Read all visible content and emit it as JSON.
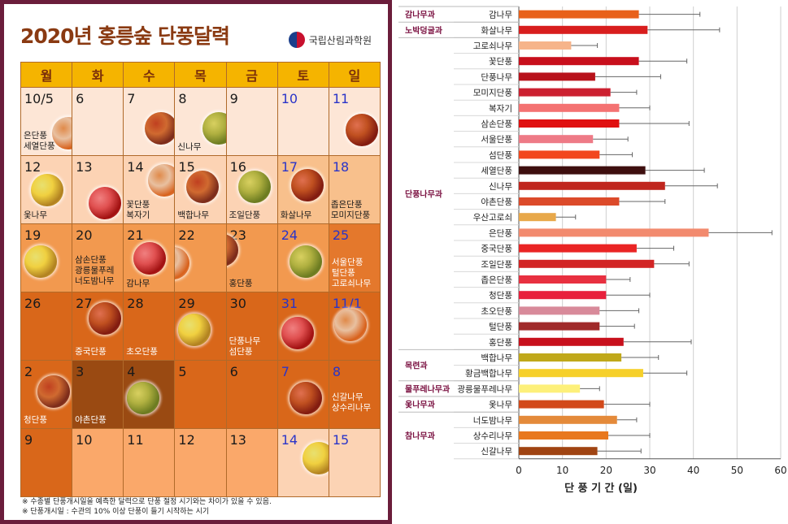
{
  "calendar": {
    "title": "2020년 홍릉숲 단풍달력",
    "brand": "국립산림과학원",
    "weekdays": [
      "월",
      "화",
      "수",
      "목",
      "금",
      "토",
      "일"
    ],
    "weeks": [
      [
        {
          "day": "10/5",
          "labels": [
            "은단풍",
            "세열단풍"
          ]
        },
        {
          "day": "6",
          "labels": []
        },
        {
          "day": "7",
          "labels": []
        },
        {
          "day": "8",
          "labels": [
            "신나무"
          ]
        },
        {
          "day": "9",
          "labels": []
        },
        {
          "day": "10",
          "labels": []
        },
        {
          "day": "11",
          "labels": []
        }
      ],
      [
        {
          "day": "12",
          "labels": [
            "옻나무"
          ]
        },
        {
          "day": "13",
          "labels": []
        },
        {
          "day": "14",
          "labels": [
            "꽃단풍",
            "복자기"
          ]
        },
        {
          "day": "15",
          "labels": [
            "백합나무"
          ]
        },
        {
          "day": "16",
          "labels": [
            "조일단풍"
          ]
        },
        {
          "day": "17",
          "labels": [
            "화살나무"
          ]
        },
        {
          "day": "18",
          "labels": [
            "좁은단풍",
            "모미지단풍"
          ]
        }
      ],
      [
        {
          "day": "19",
          "labels": []
        },
        {
          "day": "20",
          "labels": [
            "삼손단풍",
            "광릉물푸레",
            "너도밤나무"
          ]
        },
        {
          "day": "21",
          "labels": [
            "감나무"
          ]
        },
        {
          "day": "22",
          "labels": []
        },
        {
          "day": "23",
          "labels": [
            "홍단풍"
          ]
        },
        {
          "day": "24",
          "labels": []
        },
        {
          "day": "25",
          "labels": [
            "서울단풍",
            "털단풍",
            "고로쇠나무"
          ]
        }
      ],
      [
        {
          "day": "26",
          "labels": []
        },
        {
          "day": "27",
          "labels": [
            "중국단풍"
          ]
        },
        {
          "day": "28",
          "labels": [
            "초오단풍"
          ]
        },
        {
          "day": "29",
          "labels": []
        },
        {
          "day": "30",
          "labels": [
            "단풍나무",
            "섬단풍"
          ]
        },
        {
          "day": "31",
          "labels": []
        },
        {
          "day": "11/1",
          "labels": []
        }
      ],
      [
        {
          "day": "2",
          "labels": [
            "청단풍"
          ]
        },
        {
          "day": "3",
          "labels": [
            "야촌단풍"
          ]
        },
        {
          "day": "4",
          "labels": []
        },
        {
          "day": "5",
          "labels": []
        },
        {
          "day": "6",
          "labels": []
        },
        {
          "day": "7",
          "labels": []
        },
        {
          "day": "8",
          "labels": [
            "신갈나무",
            "상수리나무"
          ]
        }
      ],
      [
        {
          "day": "9",
          "labels": []
        },
        {
          "day": "10",
          "labels": []
        },
        {
          "day": "11",
          "labels": []
        },
        {
          "day": "12",
          "labels": []
        },
        {
          "day": "13",
          "labels": []
        },
        {
          "day": "14",
          "labels": []
        },
        {
          "day": "15",
          "labels": []
        }
      ]
    ],
    "notes": [
      "※ 수종별 단풍개시일을 예측한 달력으로 단풍 절정 시기와는 차이가 있을 수 있음.",
      "※ 단풍개시일 : 수관의 10% 이상 단풍이 들기 시작하는 시기"
    ]
  },
  "chart_data": {
    "type": "bar",
    "orientation": "horizontal",
    "xlabel": "단 풍 기 간 (일)",
    "xlim": [
      0,
      60
    ],
    "xticks": [
      0,
      10,
      20,
      30,
      40,
      50,
      60
    ],
    "grid": "vertical",
    "categories": [
      "감나무",
      "화살나무",
      "고로쇠나무",
      "꽃단풍",
      "단풍나무",
      "모미지단풍",
      "복자기",
      "삼손단풍",
      "서울단풍",
      "섬단풍",
      "세열단풍",
      "신나무",
      "야촌단풍",
      "우산고로쇠",
      "은단풍",
      "중국단풍",
      "조일단풍",
      "좁은단풍",
      "청단풍",
      "초오단풍",
      "털단풍",
      "홍단풍",
      "백합나무",
      "황금백합나무",
      "광릉물푸레나무",
      "옻나무",
      "너도밤나무",
      "상수리나무",
      "신갈나무"
    ],
    "values": [
      27.5,
      29.5,
      12,
      27.5,
      17.5,
      21,
      23,
      23,
      17,
      18.5,
      29,
      33.5,
      23,
      8.5,
      43.5,
      27,
      31,
      20,
      20,
      18.5,
      18.5,
      24,
      23.5,
      28.5,
      14,
      19.5,
      22.5,
      20.5,
      18
    ],
    "errors": [
      14,
      16.5,
      6,
      11,
      15,
      6,
      7,
      16,
      8,
      7.5,
      13.5,
      12,
      10.5,
      4.5,
      14.5,
      8.5,
      8,
      5.5,
      10,
      9,
      8,
      15.5,
      8.5,
      10,
      4.5,
      10.5,
      4.5,
      9.5,
      10
    ],
    "colors": [
      "#e8611a",
      "#d81e1e",
      "#f6b48a",
      "#c80f1c",
      "#b8121b",
      "#cc2030",
      "#f47272",
      "#e01010",
      "#ee7a86",
      "#f2471e",
      "#3e0f0f",
      "#c0261e",
      "#dc4a2a",
      "#e8a84a",
      "#f28a6e",
      "#ea2424",
      "#d22424",
      "#e83040",
      "#e8203c",
      "#d88a9a",
      "#a02a2a",
      "#c8101c",
      "#c0a81a",
      "#f6d02a",
      "#fdf07a",
      "#d2491a",
      "#e48a3a",
      "#e8781e",
      "#a04412"
    ],
    "families": [
      {
        "name": "감나무과",
        "from": 0,
        "to": 0
      },
      {
        "name": "노박덩굴과",
        "from": 1,
        "to": 1
      },
      {
        "name": "단풍나무과",
        "from": 2,
        "to": 21
      },
      {
        "name": "목련과",
        "from": 22,
        "to": 23
      },
      {
        "name": "물푸레나무과",
        "from": 24,
        "to": 24
      },
      {
        "name": "옻나무과",
        "from": 25,
        "to": 25
      },
      {
        "name": "참나무과",
        "from": 26,
        "to": 28
      }
    ]
  }
}
